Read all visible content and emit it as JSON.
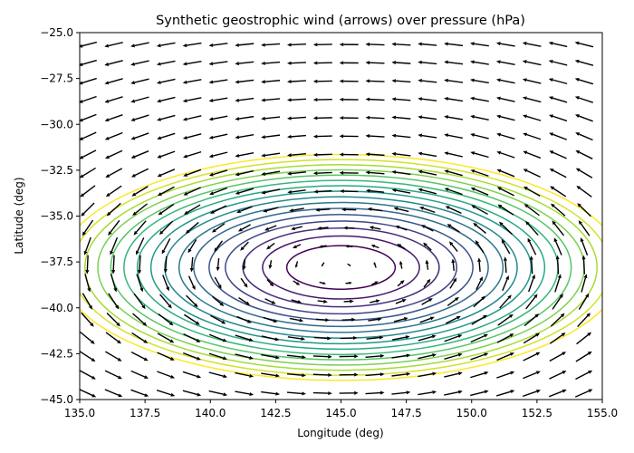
{
  "chart_data": {
    "type": "contour+quiver",
    "title": "Synthetic geostrophic wind (arrows) over pressure (hPa)",
    "xlabel": "Longitude (deg)",
    "ylabel": "Latitude (deg)",
    "xlim": [
      135.0,
      155.0
    ],
    "ylim": [
      -45.0,
      -25.0
    ],
    "xticks": [
      135.0,
      137.5,
      140.0,
      142.5,
      145.0,
      147.5,
      150.0,
      152.5,
      155.0
    ],
    "xtick_labels": [
      "135.0",
      "137.5",
      "140.0",
      "142.5",
      "145.0",
      "147.5",
      "150.0",
      "152.5",
      "155.0"
    ],
    "yticks": [
      -45.0,
      -42.5,
      -40.0,
      -37.5,
      -35.0,
      -32.5,
      -30.0,
      -27.5,
      -25.0
    ],
    "ytick_labels": [
      "−45.0",
      "−42.5",
      "−40.0",
      "−37.5",
      "−35.0",
      "−32.5",
      "−30.0",
      "−27.5",
      "−25.0"
    ],
    "grid": false,
    "colormap": "viridis",
    "pressure_field": {
      "low_center": {
        "lon": 145.0,
        "lat": -37.8
      },
      "lon_scale": 14.0,
      "lat_scale": 8.0,
      "contour_levels": 16
    },
    "wind": {
      "rotation": "counter-clockwise",
      "lon_step": 1.0,
      "lat_step": 1.0
    }
  }
}
